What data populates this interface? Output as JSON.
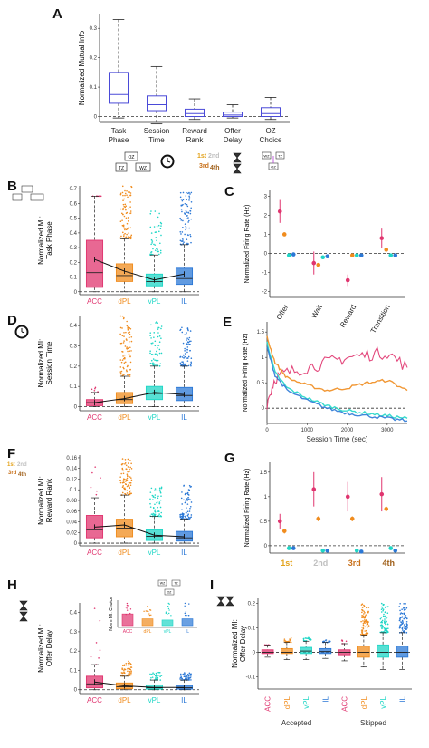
{
  "colors": {
    "ACC": "#e0356f",
    "dPL": "#f08c1e",
    "vPL": "#1fd6c6",
    "IL": "#2b78d6",
    "boxA": "#4a4ad8",
    "first": "#e3a21a",
    "second": "#bfbfbf",
    "third": "#c8701a",
    "fourth": "#a0601a"
  },
  "icons": [
    "task-phase-diagram-icon",
    "alarm-clock-icon",
    "rank-ordinals-icon",
    "hourglass-icon",
    "oz-choice-diagram-icon"
  ],
  "panels": {
    "A": {
      "letter": "A",
      "ylabel": "Normalized Mutual Info",
      "ticks": [
        "0",
        "0.1",
        "0.2",
        "0.3"
      ],
      "categories": [
        [
          "Task",
          "Phase"
        ],
        [
          "Session",
          "Time"
        ],
        [
          "Reward",
          "Rank"
        ],
        [
          "Offer",
          "Delay"
        ],
        [
          "OZ",
          "Choice"
        ]
      ]
    },
    "B": {
      "letter": "B",
      "ylabel": [
        "Normalized MI:",
        "Task Phase"
      ],
      "ticks": [
        "0",
        "0.1",
        "0.2",
        "0.3",
        "0.4",
        "0.5",
        "0.6",
        "0.7"
      ],
      "categories": [
        "ACC",
        "dPL",
        "vPL",
        "IL"
      ]
    },
    "C": {
      "letter": "C",
      "ylabel": "Normalized Firing Rate (Hz)",
      "ticks": [
        "-2",
        "-1",
        "0",
        "1",
        "2",
        "3"
      ],
      "categories": [
        "Offer",
        "Wait",
        "Reward",
        "Transition"
      ]
    },
    "D": {
      "letter": "D",
      "ylabel": [
        "Normalized MI:",
        "Session Time"
      ],
      "ticks": [
        "0",
        "0.1",
        "0.2",
        "0.3",
        "0.4"
      ],
      "categories": [
        "ACC",
        "dPL",
        "vPL",
        "IL"
      ]
    },
    "E": {
      "letter": "E",
      "ylabel": "Normalized Firing Rate (Hz)",
      "ticks": [
        "0",
        "0.5",
        "1",
        "1.5"
      ],
      "xticks": [
        "0",
        "1000",
        "2000",
        "3000"
      ],
      "xlabel": "Session Time (sec)"
    },
    "F": {
      "letter": "F",
      "ylabel": [
        "Normalized MI:",
        "Reward Rank"
      ],
      "ticks": [
        "0",
        "0.02",
        "0.04",
        "0.06",
        "0.08",
        "0.1",
        "0.12",
        "0.14",
        "0.16"
      ],
      "categories": [
        "ACC",
        "dPL",
        "vPL",
        "IL"
      ]
    },
    "G": {
      "letter": "G",
      "ylabel": "Normalized Firing Rate (Hz)",
      "ticks": [
        "0",
        "0.5",
        "1",
        "1.5"
      ],
      "categories": [
        "1st",
        "2nd",
        "3rd",
        "4th"
      ]
    },
    "H": {
      "letter": "H",
      "ylabel": [
        "Normalized MI:",
        "Offer Delay"
      ],
      "ticks": [
        "0",
        "0.1",
        "0.2",
        "0.3",
        "0.4"
      ],
      "categories": [
        "ACC",
        "dPL",
        "vPL",
        "IL"
      ],
      "inset": {
        "ylabel": [
          "Norm MI: Choice"
        ],
        "categories": [
          "ACC",
          "dPL",
          "vPL",
          "IL"
        ]
      }
    },
    "I": {
      "letter": "I",
      "ylabel": [
        "Normalized MI:",
        "Offer Delay"
      ],
      "ticks": [
        "-0.1",
        "0",
        "0.1",
        "0.2"
      ],
      "categories": [
        "ACC",
        "dPL",
        "vPL",
        "IL",
        "ACC",
        "dPL",
        "vPL",
        "IL"
      ],
      "groups": [
        "Accepted",
        "Skipped"
      ]
    }
  },
  "chart_data": [
    {
      "panel": "A",
      "type": "box",
      "ylim": [
        -0.02,
        0.35
      ],
      "boxes": [
        {
          "q1": 0.045,
          "median": 0.075,
          "q3": 0.15,
          "wlo": -0.005,
          "whi": 0.33
        },
        {
          "q1": 0.02,
          "median": 0.04,
          "q3": 0.07,
          "wlo": -0.025,
          "whi": 0.17
        },
        {
          "q1": 0.0,
          "median": 0.01,
          "q3": 0.025,
          "wlo": -0.01,
          "whi": 0.06
        },
        {
          "q1": 0.0,
          "median": 0.005,
          "q3": 0.015,
          "wlo": -0.005,
          "whi": 0.04
        },
        {
          "q1": 0.0,
          "median": 0.01,
          "q3": 0.03,
          "wlo": -0.01,
          "whi": 0.065
        }
      ]
    },
    {
      "panel": "B",
      "type": "box",
      "ylim": [
        -0.02,
        0.72
      ],
      "boxes": [
        {
          "q1": 0.03,
          "median": 0.13,
          "q3": 0.35,
          "wlo": 0.0,
          "whi": 0.65,
          "mean": 0.22,
          "pts": 6,
          "ptmax": 0.65
        },
        {
          "q1": 0.07,
          "median": 0.11,
          "q3": 0.19,
          "wlo": 0.0,
          "whi": 0.36,
          "mean": 0.14,
          "pts": 80,
          "ptmax": 0.72
        },
        {
          "q1": 0.04,
          "median": 0.07,
          "q3": 0.12,
          "wlo": 0.0,
          "whi": 0.25,
          "mean": 0.08,
          "pts": 45,
          "ptmax": 0.55
        },
        {
          "q1": 0.05,
          "median": 0.09,
          "q3": 0.16,
          "wlo": 0.0,
          "whi": 0.32,
          "mean": 0.12,
          "pts": 75,
          "ptmax": 0.7
        }
      ]
    },
    {
      "panel": "C",
      "type": "scatter",
      "ylim": [
        -2.3,
        3.3
      ],
      "errorbar": true,
      "categories": [
        "Offer",
        "Wait",
        "Reward",
        "Transition"
      ],
      "series": [
        {
          "name": "ACC",
          "values": [
            2.2,
            -0.5,
            -1.4,
            0.8
          ],
          "err": [
            0.6,
            0.6,
            0.3,
            0.5
          ]
        },
        {
          "name": "dPL",
          "values": [
            1.0,
            -0.6,
            -0.1,
            0.2
          ],
          "err": [
            0.1,
            0.1,
            0.05,
            0.1
          ]
        },
        {
          "name": "vPL",
          "values": [
            -0.1,
            -0.2,
            -0.1,
            -0.1
          ],
          "err": [
            0.05,
            0.05,
            0.05,
            0.05
          ]
        },
        {
          "name": "IL",
          "values": [
            -0.05,
            -0.15,
            -0.1,
            -0.1
          ],
          "err": [
            0.05,
            0.05,
            0.05,
            0.05
          ]
        }
      ]
    },
    {
      "panel": "D",
      "type": "box",
      "ylim": [
        -0.02,
        0.45
      ],
      "boxes": [
        {
          "q1": 0.005,
          "median": 0.02,
          "q3": 0.035,
          "wlo": 0.0,
          "whi": 0.07,
          "mean": 0.02,
          "pts": 6,
          "ptmax": 0.12
        },
        {
          "q1": 0.015,
          "median": 0.035,
          "q3": 0.07,
          "wlo": 0.0,
          "whi": 0.15,
          "mean": 0.04,
          "pts": 80,
          "ptmax": 0.45
        },
        {
          "q1": 0.035,
          "median": 0.065,
          "q3": 0.1,
          "wlo": 0.0,
          "whi": 0.2,
          "mean": 0.07,
          "pts": 60,
          "ptmax": 0.42
        },
        {
          "q1": 0.03,
          "median": 0.055,
          "q3": 0.095,
          "wlo": 0.0,
          "whi": 0.2,
          "mean": 0.06,
          "pts": 75,
          "ptmax": 0.4
        }
      ]
    },
    {
      "panel": "E",
      "type": "line",
      "ylim": [
        -0.3,
        1.7
      ],
      "xlim": [
        0,
        3500
      ],
      "xlabel": "Session Time (sec)",
      "series": [
        {
          "name": "ACC",
          "x": [
            0,
            200,
            500,
            1000,
            1500,
            2000,
            2500,
            3000,
            3500
          ],
          "values": [
            0.1,
            0.6,
            0.7,
            0.8,
            0.9,
            1.0,
            1.05,
            1.1,
            0.8
          ]
        },
        {
          "name": "dPL",
          "x": [
            0,
            200,
            500,
            1000,
            1500,
            2000,
            2500,
            3000,
            3500
          ],
          "values": [
            1.4,
            0.9,
            0.6,
            0.45,
            0.35,
            0.4,
            0.5,
            0.55,
            0.35
          ]
        },
        {
          "name": "vPL",
          "x": [
            0,
            200,
            500,
            1000,
            1500,
            2000,
            2500,
            3000,
            3500
          ],
          "values": [
            1.3,
            0.7,
            0.4,
            0.2,
            0.05,
            -0.05,
            -0.1,
            -0.15,
            -0.2
          ]
        },
        {
          "name": "IL",
          "x": [
            0,
            200,
            500,
            1000,
            1500,
            2000,
            2500,
            3000,
            3500
          ],
          "values": [
            1.2,
            0.65,
            0.35,
            0.15,
            0.0,
            -0.1,
            -0.15,
            -0.2,
            -0.25
          ]
        }
      ]
    },
    {
      "panel": "F",
      "type": "box",
      "ylim": [
        -0.005,
        0.165
      ],
      "boxes": [
        {
          "q1": 0.01,
          "median": 0.025,
          "q3": 0.052,
          "wlo": 0.0,
          "whi": 0.085,
          "mean": 0.03,
          "pts": 6,
          "ptmax": 0.145
        },
        {
          "q1": 0.012,
          "median": 0.028,
          "q3": 0.045,
          "wlo": 0.0,
          "whi": 0.09,
          "mean": 0.034,
          "pts": 80,
          "ptmax": 0.16
        },
        {
          "q1": 0.005,
          "median": 0.013,
          "q3": 0.025,
          "wlo": 0.0,
          "whi": 0.05,
          "mean": 0.015,
          "pts": 60,
          "ptmax": 0.105
        },
        {
          "q1": 0.004,
          "median": 0.01,
          "q3": 0.022,
          "wlo": 0.0,
          "whi": 0.045,
          "mean": 0.012,
          "pts": 75,
          "ptmax": 0.11
        }
      ]
    },
    {
      "panel": "G",
      "type": "scatter",
      "ylim": [
        -0.15,
        1.7
      ],
      "errorbar": true,
      "categories": [
        "1st",
        "2nd",
        "3rd",
        "4th"
      ],
      "series": [
        {
          "name": "ACC",
          "values": [
            0.5,
            1.15,
            1.0,
            1.05
          ],
          "err": [
            0.15,
            0.35,
            0.3,
            0.35
          ]
        },
        {
          "name": "dPL",
          "values": [
            0.3,
            0.55,
            0.55,
            0.75
          ],
          "err": [
            0.05,
            0.05,
            0.05,
            0.05
          ]
        },
        {
          "name": "vPL",
          "values": [
            -0.05,
            -0.1,
            -0.1,
            -0.05
          ],
          "err": [
            0.03,
            0.03,
            0.03,
            0.03
          ]
        },
        {
          "name": "IL",
          "values": [
            -0.05,
            -0.1,
            -0.12,
            -0.1
          ],
          "err": [
            0.03,
            0.03,
            0.03,
            0.03
          ]
        }
      ]
    },
    {
      "panel": "H",
      "type": "box",
      "ylim": [
        -0.02,
        0.45
      ],
      "boxes": [
        {
          "q1": 0.01,
          "median": 0.03,
          "q3": 0.07,
          "wlo": 0.0,
          "whi": 0.13,
          "mean": 0.04,
          "pts": 8,
          "ptmax": 0.45
        },
        {
          "q1": 0.005,
          "median": 0.015,
          "q3": 0.035,
          "wlo": 0.0,
          "whi": 0.07,
          "mean": 0.02,
          "pts": 50,
          "ptmax": 0.15
        },
        {
          "q1": 0.003,
          "median": 0.01,
          "q3": 0.025,
          "wlo": 0.0,
          "whi": 0.05,
          "mean": 0.012,
          "pts": 30,
          "ptmax": 0.09
        },
        {
          "q1": 0.003,
          "median": 0.01,
          "q3": 0.022,
          "wlo": 0.0,
          "whi": 0.05,
          "mean": 0.012,
          "pts": 45,
          "ptmax": 0.09
        }
      ]
    },
    {
      "panel": "I",
      "type": "box",
      "ylim": [
        -0.15,
        0.22
      ],
      "boxes": [
        {
          "q1": -0.005,
          "median": 0.0,
          "q3": 0.01,
          "wlo": -0.02,
          "whi": 0.03,
          "pts": 4,
          "ptmax": 0.03
        },
        {
          "q1": -0.005,
          "median": 0.0,
          "q3": 0.015,
          "wlo": -0.03,
          "whi": 0.04,
          "pts": 20,
          "ptmax": 0.06
        },
        {
          "q1": -0.005,
          "median": 0.005,
          "q3": 0.02,
          "wlo": -0.03,
          "whi": 0.045,
          "pts": 20,
          "ptmax": 0.06
        },
        {
          "q1": -0.005,
          "median": 0.003,
          "q3": 0.015,
          "wlo": -0.025,
          "whi": 0.04,
          "pts": 20,
          "ptmax": 0.05
        },
        {
          "q1": -0.01,
          "median": 0.0,
          "q3": 0.01,
          "wlo": -0.035,
          "whi": 0.035,
          "pts": 6,
          "ptmax": 0.05
        },
        {
          "q1": -0.02,
          "median": 0.0,
          "q3": 0.025,
          "wlo": -0.06,
          "whi": 0.07,
          "pts": 80,
          "ptmax": 0.2
        },
        {
          "q1": -0.02,
          "median": 0.0,
          "q3": 0.03,
          "wlo": -0.07,
          "whi": 0.08,
          "pts": 80,
          "ptmax": 0.2
        },
        {
          "q1": -0.02,
          "median": 0.0,
          "q3": 0.025,
          "wlo": -0.07,
          "whi": 0.08,
          "pts": 80,
          "ptmax": 0.2
        }
      ]
    }
  ]
}
